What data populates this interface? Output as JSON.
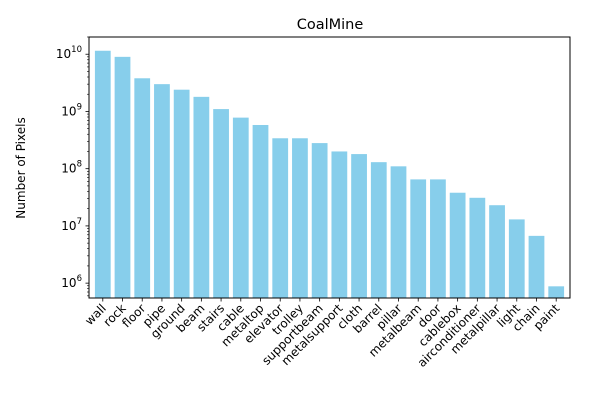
{
  "chart_data": {
    "type": "bar",
    "title": "CoalMine",
    "xlabel": "",
    "ylabel": "Number of Pixels",
    "yscale": "log",
    "ylim": [
      550000,
      20000000000
    ],
    "grid": false,
    "bar_color": "#87ceeb",
    "categories": [
      "wall",
      "rock",
      "floor",
      "pipe",
      "ground",
      "beam",
      "stairs",
      "cable",
      "metaltop",
      "elevator",
      "trolley",
      "supportbeam",
      "metalsupport",
      "cloth",
      "barrel",
      "pillar",
      "metalbeam",
      "door",
      "cablebox",
      "airconditioner",
      "metalpillar",
      "light",
      "chain",
      "paint"
    ],
    "values": [
      11500000000,
      9000000000,
      3800000000,
      3000000000,
      2400000000,
      1800000000,
      1100000000,
      780000000,
      580000000,
      340000000,
      340000000,
      280000000,
      200000000,
      180000000,
      130000000,
      110000000,
      65000000,
      65000000,
      38000000,
      31000000,
      23000000,
      13000000,
      6700000,
      880000
    ],
    "y_ticks": [
      {
        "value": 1000000,
        "base": "10",
        "exp": "6"
      },
      {
        "value": 10000000,
        "base": "10",
        "exp": "7"
      },
      {
        "value": 100000000,
        "base": "10",
        "exp": "8"
      },
      {
        "value": 1000000000,
        "base": "10",
        "exp": "9"
      },
      {
        "value": 10000000000,
        "base": "10",
        "exp": "10"
      }
    ]
  }
}
